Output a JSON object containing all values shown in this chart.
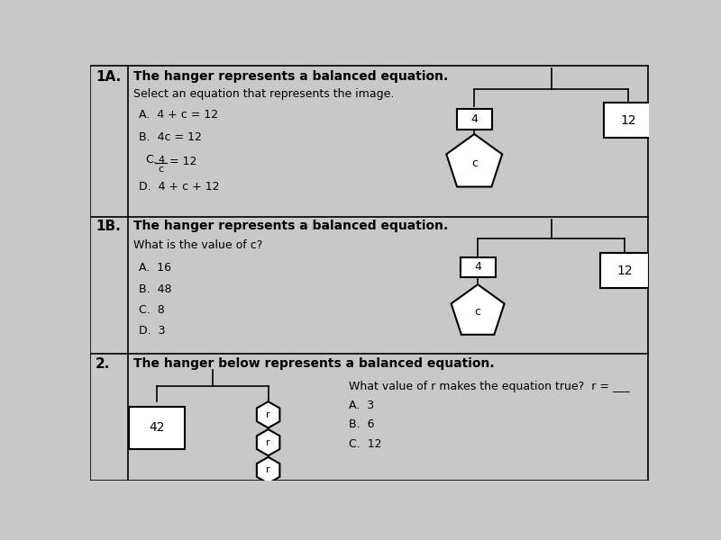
{
  "bg_color": "#c8c8c8",
  "line_color": "#000000",
  "sections": {
    "1A": {
      "label": "1A.",
      "title": "The hanger represents a balanced equation.",
      "subtitle": "Select an equation that represents the image.",
      "choices_plain": [
        "A.  4 + c = 12",
        "B.  4c = 12",
        "D.  4 + c + 12"
      ],
      "choice_C": true
    },
    "1B": {
      "label": "1B.",
      "title": "The hanger represents a balanced equation.",
      "subtitle": "What is the value of c?",
      "choices": [
        "A.  16",
        "B.  48",
        "C.  8",
        "D.  3"
      ]
    },
    "2": {
      "label": "2.",
      "title": "The hanger below represents a balanced equation.",
      "subtitle": "What value of r makes the equation true?  r = ___",
      "choices": [
        "A.  3",
        "B.  6",
        "C.  12"
      ],
      "box_label": "42",
      "hex_label": "r"
    }
  },
  "row_dividers": [
    0.635,
    0.305
  ],
  "col_divider": 0.068,
  "label_fs": 11,
  "title_fs": 10,
  "text_fs": 9,
  "shape_fs": 9
}
